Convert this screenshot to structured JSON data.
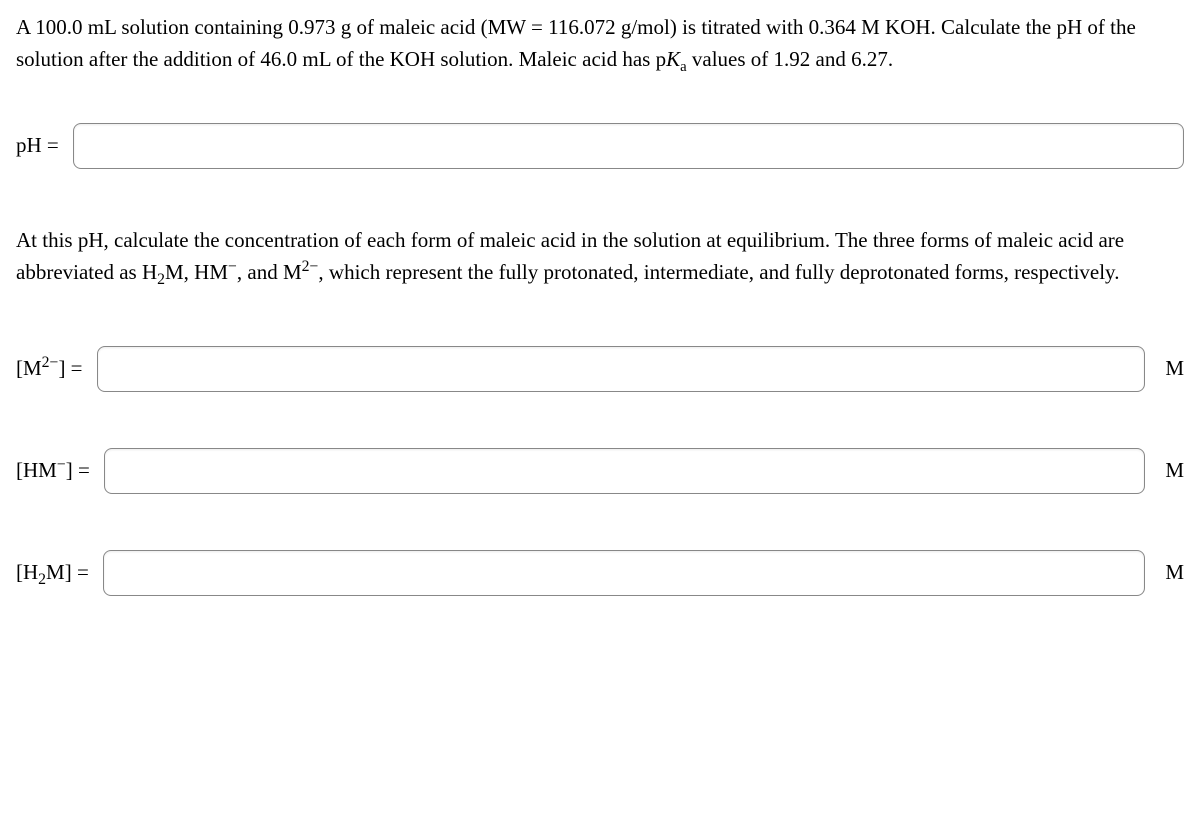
{
  "question1": {
    "text_parts": {
      "p1": "A 100.0 mL solution containing 0.973 g of maleic acid (MW = 116.072 g/mol) is titrated with 0.364 M KOH. Calculate the pH of the solution after the addition of 46.0 mL of the KOH solution. Maleic acid has p",
      "k": "K",
      "a": "a",
      "p2": " values of 1.92 and 6.27."
    }
  },
  "ph_row": {
    "label": "pH =",
    "value": "",
    "placeholder": ""
  },
  "question2": {
    "p1": "At this pH, calculate the concentration of each form of maleic acid in the solution at equilibrium. The three forms of maleic acid are abbreviated as H",
    "sub2": "2",
    "p1b": "M, HM",
    "supminus": "−",
    "p1c": ", and M",
    "sup2minus": "2−",
    "p1d": ", which represent the fully protonated, intermediate, and fully deprotonated forms, respectively."
  },
  "rows": {
    "m2minus": {
      "label_open": "[M",
      "label_sup": "2−",
      "label_close": "] =",
      "value": "",
      "unit": "M"
    },
    "hmminus": {
      "label_open": "[HM",
      "label_sup": "−",
      "label_close": "] =",
      "value": "",
      "unit": "M"
    },
    "h2m": {
      "label_open": "[H",
      "label_sub": "2",
      "label_close": "M] =",
      "value": "",
      "unit": "M"
    }
  }
}
